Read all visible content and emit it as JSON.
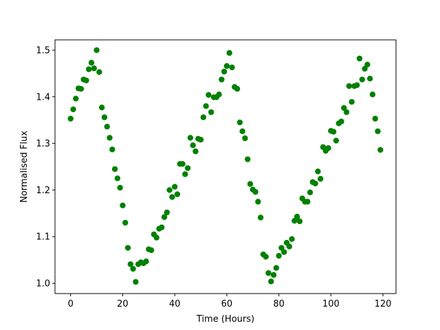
{
  "chart_data": {
    "type": "scatter",
    "title": "",
    "xlabel": "Time (Hours)",
    "ylabel": "Normalised Flux",
    "xlim": [
      -6,
      125
    ],
    "ylim": [
      0.978,
      1.522
    ],
    "xticks": [
      0,
      20,
      40,
      60,
      80,
      100,
      120
    ],
    "yticks": [
      1.0,
      1.1,
      1.2,
      1.3,
      1.4,
      1.5
    ],
    "xtick_labels": [
      "0",
      "20",
      "40",
      "60",
      "80",
      "100",
      "120"
    ],
    "ytick_labels": [
      "1.0",
      "1.1",
      "1.2",
      "1.3",
      "1.4",
      "1.5"
    ],
    "grid": false,
    "marker_color": "#008000",
    "series": [
      {
        "x": [
          0,
          1,
          2,
          3,
          4,
          5,
          6,
          7,
          8,
          9,
          10,
          11,
          12,
          13,
          14,
          15,
          16,
          17,
          18,
          19,
          20,
          21,
          22,
          23,
          24,
          25,
          26,
          27,
          28,
          29,
          30,
          31,
          32,
          33,
          34,
          35,
          36,
          37,
          38,
          39,
          40,
          41,
          42,
          43,
          44,
          45,
          46,
          47,
          48,
          49,
          50,
          51,
          52,
          53,
          54,
          55,
          56,
          57,
          58,
          59,
          60,
          61,
          62,
          63,
          64,
          65,
          66,
          67,
          68,
          69,
          70,
          71,
          72,
          73,
          74,
          75,
          76,
          77,
          78,
          79,
          80,
          81,
          82,
          83,
          84,
          85,
          86,
          87,
          88,
          89,
          90,
          91,
          92,
          93,
          94,
          95,
          96,
          97,
          98,
          99,
          100,
          101,
          102,
          103,
          104,
          105,
          106,
          107,
          108,
          109,
          110,
          111,
          112,
          113,
          114,
          115,
          116,
          117,
          118,
          119
        ],
        "y": [
          1.353,
          1.373,
          1.396,
          1.418,
          1.417,
          1.437,
          1.435,
          1.459,
          1.473,
          1.461,
          1.5,
          1.453,
          1.377,
          1.356,
          1.336,
          1.312,
          1.287,
          1.245,
          1.225,
          1.205,
          1.167,
          1.13,
          1.076,
          1.041,
          1.031,
          1.003,
          1.041,
          1.045,
          1.043,
          1.047,
          1.073,
          1.071,
          1.105,
          1.098,
          1.117,
          1.12,
          1.142,
          1.152,
          1.2,
          1.185,
          1.207,
          1.191,
          1.256,
          1.256,
          1.234,
          1.247,
          1.312,
          1.296,
          1.283,
          1.31,
          1.308,
          1.356,
          1.38,
          1.404,
          1.367,
          1.399,
          1.399,
          1.405,
          1.437,
          1.454,
          1.466,
          1.494,
          1.463,
          1.421,
          1.417,
          1.345,
          1.326,
          1.311,
          1.266,
          1.213,
          1.201,
          1.196,
          1.175,
          1.141,
          1.062,
          1.057,
          1.022,
          1.004,
          1.018,
          1.033,
          1.059,
          1.076,
          1.067,
          1.087,
          1.079,
          1.095,
          1.134,
          1.143,
          1.133,
          1.182,
          1.175,
          1.175,
          1.195,
          1.217,
          1.214,
          1.24,
          1.224,
          1.292,
          1.284,
          1.29,
          1.327,
          1.325,
          1.306,
          1.343,
          1.347,
          1.376,
          1.367,
          1.423,
          1.389,
          1.423,
          1.425,
          1.482,
          1.437,
          1.46,
          1.469,
          1.439,
          1.405,
          1.353,
          1.326,
          1.286
        ]
      }
    ]
  }
}
